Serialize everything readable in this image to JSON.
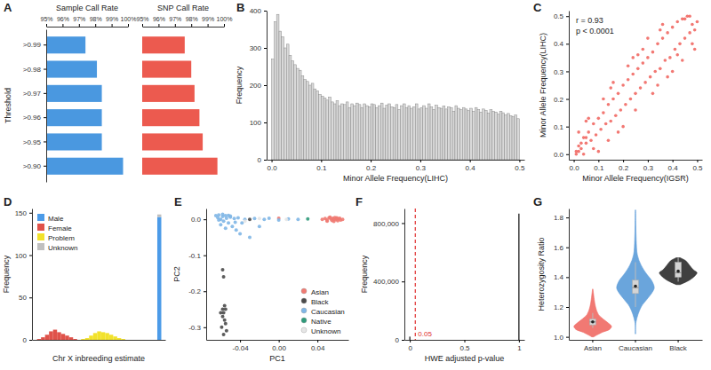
{
  "chart_data": [
    {
      "type": "bar",
      "title": "A",
      "orientation": "horizontal",
      "y_label": "Threshold",
      "categories": [
        ">0.99",
        ">0.98",
        ">0.97",
        ">0.96",
        ">0.95",
        ">0.90"
      ],
      "series": [
        {
          "name": "Sample Call Rate",
          "color": "#4a98e0",
          "values": [
            97.4,
            98.1,
            98.4,
            98.4,
            98.4,
            99.7
          ]
        },
        {
          "name": "SNP Call Rate",
          "color": "#ec5a4f",
          "values": [
            97.6,
            98.0,
            98.2,
            98.5,
            98.7,
            99.6
          ]
        }
      ],
      "xlim": [
        95,
        100
      ],
      "xticks": [
        {
          "value": 95,
          "label": "95%"
        },
        {
          "value": 96,
          "label": "96%"
        },
        {
          "value": 97,
          "label": "97%"
        },
        {
          "value": 98,
          "label": "98%"
        },
        {
          "value": 99,
          "label": "99%"
        },
        {
          "value": 100,
          "label": "100%"
        }
      ]
    },
    {
      "type": "histogram",
      "title": "B",
      "x_label": "Minor Allele Frequency(LIHC)",
      "y_label": "Frequency",
      "color": "#d9d9d9",
      "bins": [
        0,
        0.005,
        0.01,
        0.015,
        0.02,
        0.025,
        0.03,
        0.035,
        0.04,
        0.045,
        0.05,
        0.055,
        0.06,
        0.065,
        0.07,
        0.075,
        0.08,
        0.085,
        0.09,
        0.095,
        0.1,
        0.105,
        0.11,
        0.115,
        0.12,
        0.125,
        0.13,
        0.135,
        0.14,
        0.145,
        0.15,
        0.155,
        0.16,
        0.165,
        0.17,
        0.175,
        0.18,
        0.185,
        0.19,
        0.195,
        0.2,
        0.205,
        0.21,
        0.215,
        0.22,
        0.225,
        0.23,
        0.235,
        0.24,
        0.245,
        0.25,
        0.255,
        0.26,
        0.265,
        0.27,
        0.275,
        0.28,
        0.285,
        0.29,
        0.295,
        0.3,
        0.305,
        0.31,
        0.315,
        0.32,
        0.325,
        0.33,
        0.335,
        0.34,
        0.345,
        0.35,
        0.355,
        0.36,
        0.365,
        0.37,
        0.375,
        0.38,
        0.385,
        0.39,
        0.395,
        0.4,
        0.405,
        0.41,
        0.415,
        0.42,
        0.425,
        0.43,
        0.435,
        0.44,
        0.445,
        0.45,
        0.455,
        0.46,
        0.465,
        0.47,
        0.475,
        0.48,
        0.485,
        0.49,
        0.495,
        0.5
      ],
      "values": [
        270,
        370,
        390,
        345,
        330,
        300,
        310,
        280,
        265,
        255,
        245,
        240,
        225,
        215,
        210,
        200,
        205,
        190,
        185,
        175,
        170,
        165,
        160,
        168,
        155,
        150,
        158,
        145,
        150,
        148,
        155,
        140,
        150,
        145,
        152,
        148,
        140,
        150,
        145,
        142,
        150,
        148,
        140,
        145,
        152,
        138,
        146,
        150,
        142,
        140,
        148,
        135,
        145,
        150,
        140,
        145,
        138,
        142,
        150,
        136,
        140,
        145,
        138,
        150,
        142,
        135,
        146,
        140,
        138,
        144,
        136,
        142,
        140,
        130,
        145,
        138,
        134,
        140,
        136,
        132,
        138,
        130,
        140,
        135,
        128,
        136,
        132,
        125,
        134,
        130,
        128,
        122,
        130,
        126,
        120,
        124,
        118,
        115,
        120,
        110
      ],
      "xlim": [
        -0.01,
        0.51
      ],
      "ylim": [
        0,
        400
      ],
      "xticks": [
        {
          "value": 0,
          "label": "0.0"
        },
        0.1,
        0.2,
        0.3,
        0.4,
        0.5
      ],
      "yticks": [
        0,
        100,
        200,
        300,
        400
      ]
    },
    {
      "type": "scatter",
      "title": "C",
      "x_label": "Minor Allele Frequency(IGSR)",
      "y_label": "Minor Allele Frequency(LIHC)",
      "color": "#f0605a",
      "annotations": [
        "r = 0.93",
        "p < 0.0001"
      ],
      "x": [
        0.01,
        0.02,
        0.03,
        0.01,
        0.04,
        0.05,
        0.02,
        0.06,
        0.07,
        0.03,
        0.08,
        0.09,
        0.1,
        0.05,
        0.11,
        0.12,
        0.13,
        0.14,
        0.15,
        0.16,
        0.17,
        0.18,
        0.19,
        0.2,
        0.21,
        0.22,
        0.23,
        0.24,
        0.25,
        0.26,
        0.27,
        0.28,
        0.29,
        0.3,
        0.31,
        0.32,
        0.33,
        0.34,
        0.35,
        0.36,
        0.37,
        0.38,
        0.39,
        0.4,
        0.41,
        0.42,
        0.43,
        0.44,
        0.45,
        0.46,
        0.47,
        0.48,
        0.49,
        0.5,
        0.05,
        0.08,
        0.12,
        0.15,
        0.18,
        0.22,
        0.25,
        0.28,
        0.32,
        0.35,
        0.38,
        0.42,
        0.45,
        0.48,
        0.1,
        0.2,
        0.3,
        0.4,
        0.47,
        0.49,
        0.02,
        0.04,
        0.06,
        0.14,
        0.24,
        0.34,
        0.44,
        0.36,
        0.26,
        0.16
      ],
      "values": [
        0.01,
        0.03,
        0.02,
        0.0,
        0.06,
        0.04,
        0.01,
        0.08,
        0.05,
        0.04,
        0.11,
        0.07,
        0.13,
        0.06,
        0.09,
        0.15,
        0.11,
        0.18,
        0.12,
        0.2,
        0.14,
        0.22,
        0.16,
        0.25,
        0.18,
        0.27,
        0.2,
        0.29,
        0.22,
        0.31,
        0.24,
        0.33,
        0.26,
        0.35,
        0.28,
        0.37,
        0.3,
        0.4,
        0.31,
        0.42,
        0.34,
        0.44,
        0.35,
        0.46,
        0.38,
        0.48,
        0.4,
        0.49,
        0.42,
        0.5,
        0.44,
        0.47,
        0.45,
        0.48,
        0.12,
        0.02,
        0.2,
        0.24,
        0.08,
        0.32,
        0.16,
        0.38,
        0.22,
        0.45,
        0.28,
        0.36,
        0.49,
        0.4,
        0.01,
        0.1,
        0.42,
        0.3,
        0.5,
        0.38,
        0.08,
        0.0,
        0.13,
        0.05,
        0.35,
        0.25,
        0.34,
        0.47,
        0.36,
        0.26
      ],
      "xlim": [
        -0.02,
        0.52
      ],
      "ylim": [
        -0.02,
        0.52
      ],
      "xticks": [
        {
          "value": 0,
          "label": "0.0"
        },
        0.1,
        0.2,
        0.3,
        0.4,
        0.5
      ],
      "yticks": [
        {
          "value": 0,
          "label": "0.0"
        },
        0.1,
        0.2,
        0.3,
        0.4,
        0.5
      ]
    },
    {
      "type": "histogram",
      "title": "D",
      "stacked": true,
      "legend": "top-left",
      "tick_labels": "y",
      "x_label": "Chr X inbreeding estimate",
      "y_label": "Frequency",
      "bins": [
        -0.2,
        -0.16,
        -0.12,
        -0.08,
        -0.04,
        0,
        0.04,
        0.08,
        0.12,
        0.16,
        0.2,
        0.24,
        0.28,
        0.32,
        0.36,
        0.4,
        0.44,
        0.48,
        0.52,
        0.56,
        0.6,
        0.64,
        0.68,
        0.72,
        0.76,
        0.8,
        0.84,
        0.88,
        0.92,
        0.96,
        1,
        1.04
      ],
      "series": [
        {
          "name": "Male",
          "color": "#4c9be8",
          "values": [
            0,
            0,
            0,
            0,
            0,
            0,
            0,
            0,
            0,
            0,
            0,
            0,
            0,
            0,
            0,
            0,
            0,
            0,
            0,
            0,
            0,
            0,
            0,
            0,
            0,
            0,
            0,
            0,
            0,
            0,
            145
          ]
        },
        {
          "name": "Female",
          "color": "#e0524a",
          "values": [
            1,
            3,
            6,
            10,
            12,
            9,
            7,
            5,
            3,
            1,
            0,
            0,
            0,
            0,
            0,
            0,
            0,
            0,
            0,
            0,
            0,
            0,
            0,
            0,
            0,
            0,
            0,
            0,
            0,
            0,
            0
          ]
        },
        {
          "name": "Problem",
          "color": "#f2e22b",
          "values": [
            0,
            0,
            0,
            0,
            0,
            0,
            0,
            0,
            0,
            0,
            0,
            1,
            2,
            5,
            8,
            10,
            9,
            8,
            6,
            4,
            2,
            1,
            0,
            0,
            0,
            0,
            0,
            0,
            0,
            0,
            0
          ]
        },
        {
          "name": "Unknown",
          "color": "#c0c0c0",
          "values": [
            0,
            0,
            0,
            0,
            0,
            0,
            0,
            0,
            0,
            0,
            0,
            0,
            0,
            0,
            0,
            0,
            0,
            0,
            0,
            0,
            0,
            0,
            0,
            0,
            0,
            0,
            0,
            0,
            0,
            0,
            3
          ]
        }
      ],
      "xlim": [
        -0.25,
        1.08
      ],
      "ylim": [
        0,
        155
      ],
      "yticks": [
        0,
        50,
        100,
        150
      ]
    },
    {
      "type": "scatter",
      "title": "E",
      "legend": "bottom-right",
      "x_label": "PC1",
      "y_label": "PC2",
      "series": [
        {
          "name": "Asian",
          "color": "#f07a72",
          "x": [
            0.045,
            0.048,
            0.05,
            0.052,
            0.054,
            0.055,
            0.056,
            0.057,
            0.058,
            0.059,
            0.06,
            0.061,
            0.062,
            0.063,
            0.05,
            0.053,
            0.057,
            0.06,
            0.064,
            0.066,
            0.0
          ],
          "values": [
            0.0,
            0.002,
            -0.002,
            0.004,
            0.001,
            -0.003,
            0.003,
            0.0,
            0.005,
            -0.001,
            0.002,
            -0.004,
            0.001,
            0.003,
            -0.005,
            0.006,
            -0.006,
            0.004,
            -0.002,
            0.0,
            0.003
          ]
        },
        {
          "name": "Black",
          "color": "#4a4a4a",
          "x": [
            -0.058,
            -0.057,
            -0.056,
            -0.055,
            -0.057,
            -0.058,
            -0.056,
            -0.059,
            -0.054,
            -0.057,
            -0.055,
            -0.058,
            -0.06,
            -0.03
          ],
          "values": [
            -0.14,
            -0.16,
            -0.24,
            -0.25,
            -0.26,
            -0.27,
            -0.28,
            -0.3,
            -0.31,
            -0.32,
            -0.29,
            -0.25,
            -0.26,
            0.0
          ]
        },
        {
          "name": "Caucasian",
          "color": "#7fb6e6",
          "x": [
            -0.065,
            -0.063,
            -0.062,
            -0.06,
            -0.058,
            -0.057,
            -0.055,
            -0.054,
            -0.052,
            -0.05,
            -0.048,
            -0.046,
            -0.044,
            -0.042,
            -0.04,
            -0.038,
            -0.035,
            -0.03,
            -0.025,
            -0.02,
            -0.015,
            -0.01,
            0.0,
            0.01,
            0.02,
            -0.06,
            -0.055,
            -0.05,
            -0.045,
            -0.062,
            -0.058,
            -0.052
          ],
          "values": [
            0.01,
            0.005,
            0.012,
            0.0,
            0.008,
            -0.005,
            0.01,
            0.003,
            -0.01,
            0.006,
            -0.02,
            0.002,
            -0.03,
            0.004,
            -0.04,
            -0.01,
            0.0,
            -0.05,
            0.002,
            -0.02,
            0.0,
            0.003,
            -0.002,
            0.001,
            0.0,
            -0.015,
            -0.025,
            0.009,
            -0.008,
            -0.002,
            0.014,
            0.011
          ]
        },
        {
          "name": "Native",
          "color": "#2f9a7a",
          "x": [
            0.03
          ],
          "values": [
            0.001
          ]
        },
        {
          "name": "Unknown",
          "color": "#e6e6e6",
          "x": [
            -0.035,
            -0.02,
            0.008
          ],
          "values": [
            -0.005,
            0.002,
            0.0
          ]
        }
      ],
      "xlim": [
        -0.075,
        0.072
      ],
      "ylim": [
        -0.335,
        0.03
      ],
      "xticks": [
        -0.04,
        {
          "value": 0,
          "label": "0.00"
        },
        0.04
      ],
      "yticks": [
        {
          "value": 0,
          "label": "0.0"
        },
        -0.1,
        -0.2,
        -0.3
      ]
    },
    {
      "type": "histogram",
      "title": "F",
      "x_label": "HWE adjusted p-value",
      "y_label": "Frequency",
      "color": "#111111",
      "bins": [
        -0.005,
        0.005,
        0.995,
        1.005
      ],
      "values": [
        22000,
        0,
        865000
      ],
      "reference_line": {
        "value": 0.05,
        "color": "#e03030",
        "line_style": "dashed"
      },
      "xlim": [
        -0.05,
        1.05
      ],
      "ylim": [
        0,
        900000
      ],
      "xticks": [
        0,
        0.5,
        1
      ],
      "yticks": [
        0,
        {
          "value": 400000,
          "label": "400,000"
        },
        {
          "value": 800000,
          "label": "800,000"
        }
      ]
    },
    {
      "type": "violin",
      "title": "G",
      "y_label": "Heterozygosity Ratio",
      "categories": [
        "Asian",
        "Caucasian",
        "Black"
      ],
      "violins": [
        {
          "color": "#f06a64",
          "box": [
            1.06,
            1.08,
            1.1,
            1.12,
            1.16
          ],
          "mean": 1.1,
          "y": [
            1.0,
            1.03,
            1.05,
            1.07,
            1.09,
            1.12,
            1.15,
            1.2,
            1.25,
            1.3,
            1.32
          ],
          "density": [
            0.05,
            0.5,
            0.9,
            1.0,
            0.85,
            0.55,
            0.3,
            0.15,
            0.08,
            0.03,
            0.01
          ]
        },
        {
          "color": "#5a9bd8",
          "box": [
            1.2,
            1.29,
            1.33,
            1.38,
            1.5
          ],
          "mean": 1.34,
          "y": [
            1.02,
            1.1,
            1.2,
            1.25,
            1.3,
            1.33,
            1.38,
            1.42,
            1.48,
            1.55,
            1.65,
            1.75,
            1.85
          ],
          "density": [
            0.01,
            0.03,
            0.3,
            0.6,
            0.9,
            1.0,
            0.85,
            0.6,
            0.3,
            0.1,
            0.04,
            0.02,
            0.01
          ]
        },
        {
          "color": "#2b2b2b",
          "box": [
            1.37,
            1.4,
            1.43,
            1.5,
            1.53
          ],
          "mean": 1.44,
          "y": [
            1.35,
            1.38,
            1.41,
            1.43,
            1.45,
            1.48,
            1.51,
            1.53
          ],
          "density": [
            0.1,
            0.6,
            0.9,
            1.0,
            0.8,
            0.6,
            0.4,
            0.1
          ]
        }
      ],
      "ylim": [
        0.98,
        1.86
      ],
      "yticks": [
        {
          "value": 1,
          "label": "1.0"
        },
        1.2,
        1.4,
        1.6,
        1.8
      ]
    }
  ]
}
